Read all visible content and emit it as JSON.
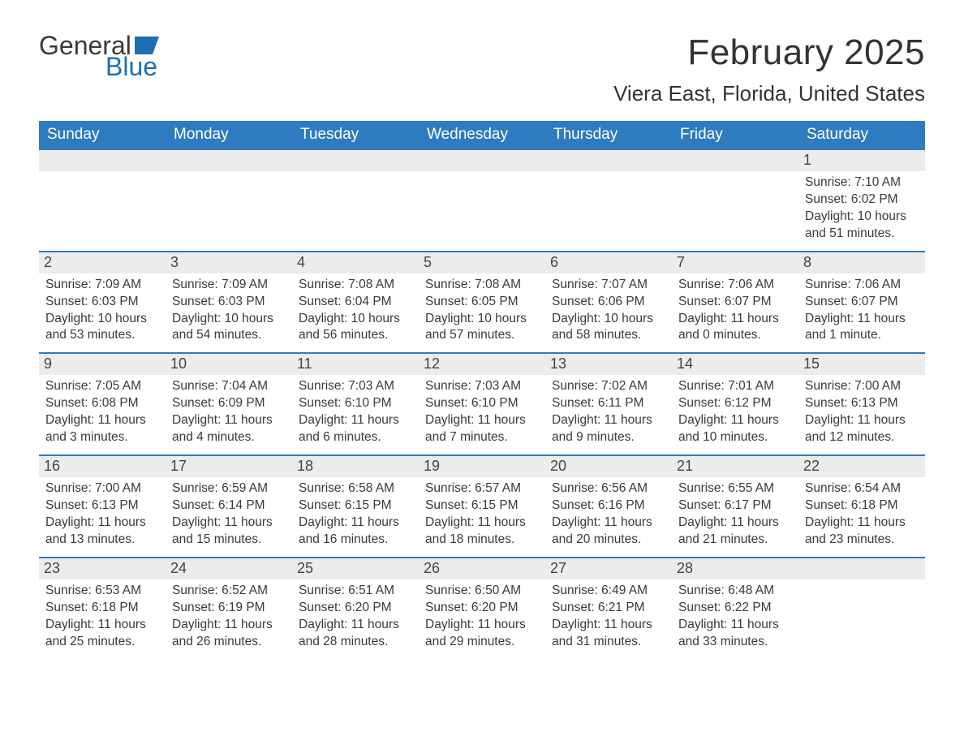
{
  "brand": {
    "word1": "General",
    "word2": "Blue"
  },
  "colors": {
    "header_bg": "#2f7bbf",
    "header_text": "#ffffff",
    "row_divider": "#2f7bbf",
    "daynum_bg": "#ececec",
    "body_text": "#3a3a3a",
    "logo_blue": "#1f6fb2",
    "page_bg": "#ffffff"
  },
  "title": "February 2025",
  "location": "Viera East, Florida, United States",
  "days_of_week": [
    "Sunday",
    "Monday",
    "Tuesday",
    "Wednesday",
    "Thursday",
    "Friday",
    "Saturday"
  ],
  "weeks": [
    [
      {
        "n": "",
        "sunrise": "",
        "sunset": "",
        "daylight": ""
      },
      {
        "n": "",
        "sunrise": "",
        "sunset": "",
        "daylight": ""
      },
      {
        "n": "",
        "sunrise": "",
        "sunset": "",
        "daylight": ""
      },
      {
        "n": "",
        "sunrise": "",
        "sunset": "",
        "daylight": ""
      },
      {
        "n": "",
        "sunrise": "",
        "sunset": "",
        "daylight": ""
      },
      {
        "n": "",
        "sunrise": "",
        "sunset": "",
        "daylight": ""
      },
      {
        "n": "1",
        "sunrise": "Sunrise: 7:10 AM",
        "sunset": "Sunset: 6:02 PM",
        "daylight": "Daylight: 10 hours and 51 minutes."
      }
    ],
    [
      {
        "n": "2",
        "sunrise": "Sunrise: 7:09 AM",
        "sunset": "Sunset: 6:03 PM",
        "daylight": "Daylight: 10 hours and 53 minutes."
      },
      {
        "n": "3",
        "sunrise": "Sunrise: 7:09 AM",
        "sunset": "Sunset: 6:03 PM",
        "daylight": "Daylight: 10 hours and 54 minutes."
      },
      {
        "n": "4",
        "sunrise": "Sunrise: 7:08 AM",
        "sunset": "Sunset: 6:04 PM",
        "daylight": "Daylight: 10 hours and 56 minutes."
      },
      {
        "n": "5",
        "sunrise": "Sunrise: 7:08 AM",
        "sunset": "Sunset: 6:05 PM",
        "daylight": "Daylight: 10 hours and 57 minutes."
      },
      {
        "n": "6",
        "sunrise": "Sunrise: 7:07 AM",
        "sunset": "Sunset: 6:06 PM",
        "daylight": "Daylight: 10 hours and 58 minutes."
      },
      {
        "n": "7",
        "sunrise": "Sunrise: 7:06 AM",
        "sunset": "Sunset: 6:07 PM",
        "daylight": "Daylight: 11 hours and 0 minutes."
      },
      {
        "n": "8",
        "sunrise": "Sunrise: 7:06 AM",
        "sunset": "Sunset: 6:07 PM",
        "daylight": "Daylight: 11 hours and 1 minute."
      }
    ],
    [
      {
        "n": "9",
        "sunrise": "Sunrise: 7:05 AM",
        "sunset": "Sunset: 6:08 PM",
        "daylight": "Daylight: 11 hours and 3 minutes."
      },
      {
        "n": "10",
        "sunrise": "Sunrise: 7:04 AM",
        "sunset": "Sunset: 6:09 PM",
        "daylight": "Daylight: 11 hours and 4 minutes."
      },
      {
        "n": "11",
        "sunrise": "Sunrise: 7:03 AM",
        "sunset": "Sunset: 6:10 PM",
        "daylight": "Daylight: 11 hours and 6 minutes."
      },
      {
        "n": "12",
        "sunrise": "Sunrise: 7:03 AM",
        "sunset": "Sunset: 6:10 PM",
        "daylight": "Daylight: 11 hours and 7 minutes."
      },
      {
        "n": "13",
        "sunrise": "Sunrise: 7:02 AM",
        "sunset": "Sunset: 6:11 PM",
        "daylight": "Daylight: 11 hours and 9 minutes."
      },
      {
        "n": "14",
        "sunrise": "Sunrise: 7:01 AM",
        "sunset": "Sunset: 6:12 PM",
        "daylight": "Daylight: 11 hours and 10 minutes."
      },
      {
        "n": "15",
        "sunrise": "Sunrise: 7:00 AM",
        "sunset": "Sunset: 6:13 PM",
        "daylight": "Daylight: 11 hours and 12 minutes."
      }
    ],
    [
      {
        "n": "16",
        "sunrise": "Sunrise: 7:00 AM",
        "sunset": "Sunset: 6:13 PM",
        "daylight": "Daylight: 11 hours and 13 minutes."
      },
      {
        "n": "17",
        "sunrise": "Sunrise: 6:59 AM",
        "sunset": "Sunset: 6:14 PM",
        "daylight": "Daylight: 11 hours and 15 minutes."
      },
      {
        "n": "18",
        "sunrise": "Sunrise: 6:58 AM",
        "sunset": "Sunset: 6:15 PM",
        "daylight": "Daylight: 11 hours and 16 minutes."
      },
      {
        "n": "19",
        "sunrise": "Sunrise: 6:57 AM",
        "sunset": "Sunset: 6:15 PM",
        "daylight": "Daylight: 11 hours and 18 minutes."
      },
      {
        "n": "20",
        "sunrise": "Sunrise: 6:56 AM",
        "sunset": "Sunset: 6:16 PM",
        "daylight": "Daylight: 11 hours and 20 minutes."
      },
      {
        "n": "21",
        "sunrise": "Sunrise: 6:55 AM",
        "sunset": "Sunset: 6:17 PM",
        "daylight": "Daylight: 11 hours and 21 minutes."
      },
      {
        "n": "22",
        "sunrise": "Sunrise: 6:54 AM",
        "sunset": "Sunset: 6:18 PM",
        "daylight": "Daylight: 11 hours and 23 minutes."
      }
    ],
    [
      {
        "n": "23",
        "sunrise": "Sunrise: 6:53 AM",
        "sunset": "Sunset: 6:18 PM",
        "daylight": "Daylight: 11 hours and 25 minutes."
      },
      {
        "n": "24",
        "sunrise": "Sunrise: 6:52 AM",
        "sunset": "Sunset: 6:19 PM",
        "daylight": "Daylight: 11 hours and 26 minutes."
      },
      {
        "n": "25",
        "sunrise": "Sunrise: 6:51 AM",
        "sunset": "Sunset: 6:20 PM",
        "daylight": "Daylight: 11 hours and 28 minutes."
      },
      {
        "n": "26",
        "sunrise": "Sunrise: 6:50 AM",
        "sunset": "Sunset: 6:20 PM",
        "daylight": "Daylight: 11 hours and 29 minutes."
      },
      {
        "n": "27",
        "sunrise": "Sunrise: 6:49 AM",
        "sunset": "Sunset: 6:21 PM",
        "daylight": "Daylight: 11 hours and 31 minutes."
      },
      {
        "n": "28",
        "sunrise": "Sunrise: 6:48 AM",
        "sunset": "Sunset: 6:22 PM",
        "daylight": "Daylight: 11 hours and 33 minutes."
      },
      {
        "n": "",
        "sunrise": "",
        "sunset": "",
        "daylight": ""
      }
    ]
  ]
}
